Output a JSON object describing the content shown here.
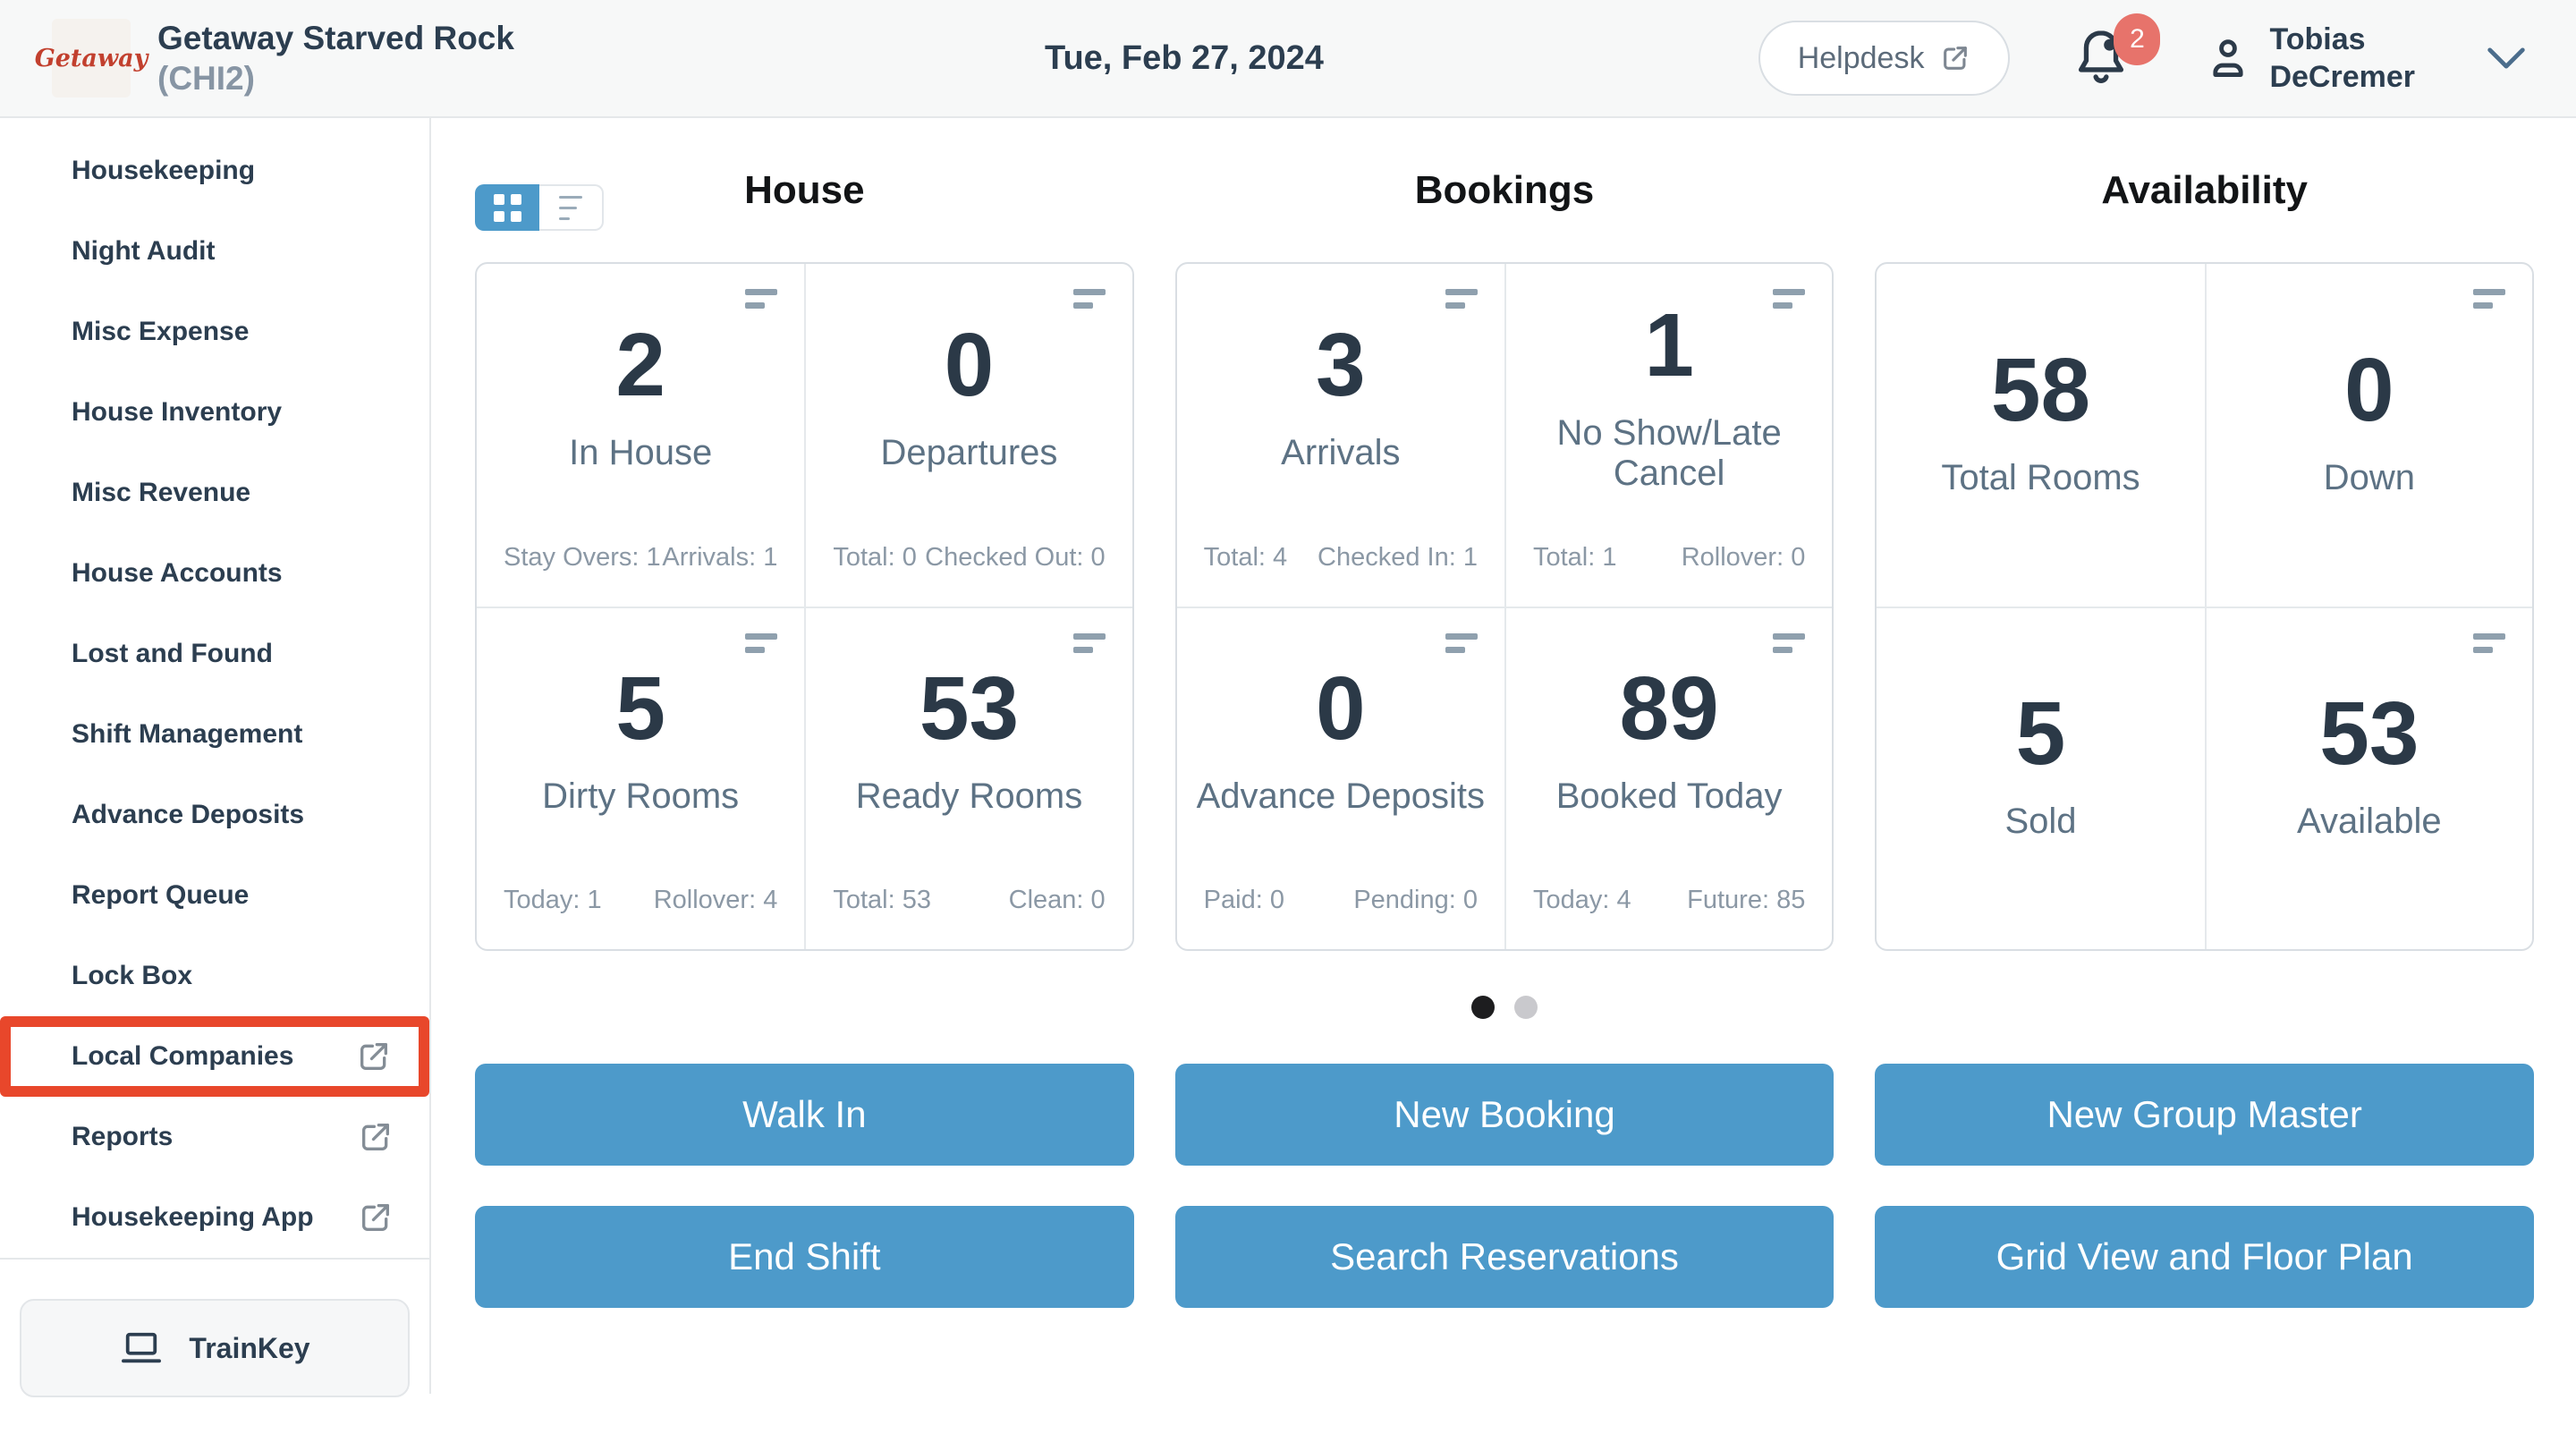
{
  "header": {
    "logo_text": "Getaway",
    "property_name": "Getaway Starved Rock",
    "property_code": "(CHI2)",
    "date": "Tue, Feb 27, 2024",
    "helpdesk_label": "Helpdesk",
    "notification_count": "2",
    "user_name_line1": "Tobias",
    "user_name_line2": "DeCremer"
  },
  "sidebar": {
    "items": [
      {
        "label": "Housekeeping",
        "external": false,
        "highlighted": false
      },
      {
        "label": "Night Audit",
        "external": false,
        "highlighted": false
      },
      {
        "label": "Misc Expense",
        "external": false,
        "highlighted": false
      },
      {
        "label": "House Inventory",
        "external": false,
        "highlighted": false
      },
      {
        "label": "Misc Revenue",
        "external": false,
        "highlighted": false
      },
      {
        "label": "House Accounts",
        "external": false,
        "highlighted": false
      },
      {
        "label": "Lost and Found",
        "external": false,
        "highlighted": false
      },
      {
        "label": "Shift Management",
        "external": false,
        "highlighted": false
      },
      {
        "label": "Advance Deposits",
        "external": false,
        "highlighted": false
      },
      {
        "label": "Report Queue",
        "external": false,
        "highlighted": false
      },
      {
        "label": "Lock Box",
        "external": false,
        "highlighted": false
      },
      {
        "label": "Local Companies",
        "external": true,
        "highlighted": true
      },
      {
        "label": "Reports",
        "external": true,
        "highlighted": false
      },
      {
        "label": "Housekeeping App",
        "external": true,
        "highlighted": false
      }
    ],
    "trainkey_label": "TrainKey"
  },
  "view_toggle": {
    "active": "grid",
    "options": [
      "grid",
      "list"
    ]
  },
  "dashboard": {
    "columns": [
      {
        "title": "House",
        "cards": [
          {
            "value": "2",
            "label": "In House",
            "icon": true,
            "stat_left": "Stay Overs: 1",
            "stat_right": "Arrivals: 1"
          },
          {
            "value": "0",
            "label": "Departures",
            "icon": true,
            "stat_left": "Total: 0",
            "stat_right": "Checked Out: 0"
          },
          {
            "value": "5",
            "label": "Dirty Rooms",
            "icon": true,
            "stat_left": "Today: 1",
            "stat_right": "Rollover: 4"
          },
          {
            "value": "53",
            "label": "Ready Rooms",
            "icon": true,
            "stat_left": "Total: 53",
            "stat_right": "Clean: 0"
          }
        ]
      },
      {
        "title": "Bookings",
        "cards": [
          {
            "value": "3",
            "label": "Arrivals",
            "icon": true,
            "stat_left": "Total: 4",
            "stat_right": "Checked In: 1"
          },
          {
            "value": "1",
            "label": "No Show/Late Cancel",
            "icon": true,
            "stat_left": "Total: 1",
            "stat_right": "Rollover: 0"
          },
          {
            "value": "0",
            "label": "Advance Deposits",
            "icon": true,
            "stat_left": "Paid: 0",
            "stat_right": "Pending: 0"
          },
          {
            "value": "89",
            "label": "Booked Today",
            "icon": true,
            "stat_left": "Today: 4",
            "stat_right": "Future: 85"
          }
        ]
      },
      {
        "title": "Availability",
        "cards": [
          {
            "value": "58",
            "label": "Total Rooms",
            "icon": false
          },
          {
            "value": "0",
            "label": "Down",
            "icon": true
          },
          {
            "value": "5",
            "label": "Sold",
            "icon": false
          },
          {
            "value": "53",
            "label": "Available",
            "icon": true
          }
        ]
      }
    ],
    "pagination": {
      "total_dots": 2,
      "active_index": 0
    },
    "actions": [
      {
        "label": "Walk In"
      },
      {
        "label": "New Booking"
      },
      {
        "label": "New Group Master"
      },
      {
        "label": "End Shift"
      },
      {
        "label": "Search Reservations"
      },
      {
        "label": "Grid View and Floor Plan"
      }
    ]
  },
  "colors": {
    "accent_blue": "#4d9aca",
    "highlight_red": "#e8472b",
    "badge_salmon": "#e7736b",
    "number_navy": "#2b3947",
    "label_slate": "#5d7284"
  }
}
